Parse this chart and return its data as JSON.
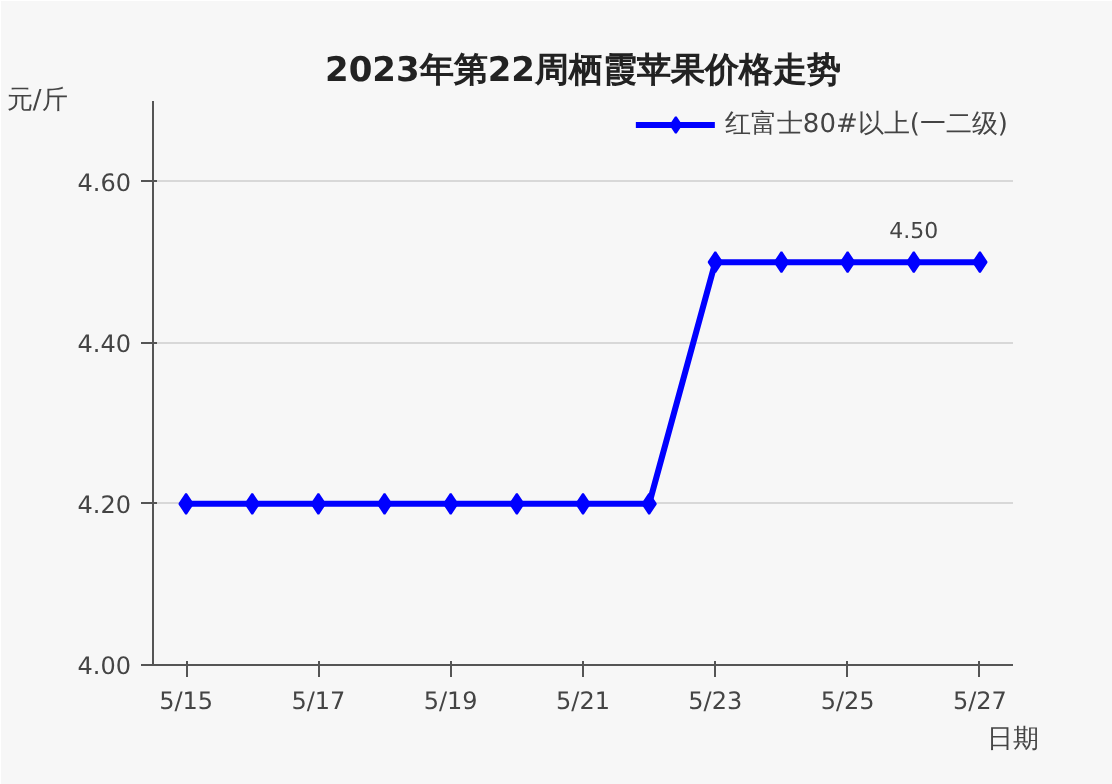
{
  "chart_data": {
    "type": "line",
    "title": "2023年第22周栖霞苹果价格走势",
    "xlabel": "日期",
    "ylabel": "元/斤",
    "categories": [
      "5/15",
      null,
      "5/17",
      null,
      "5/19",
      null,
      "5/21",
      null,
      "5/23",
      null,
      "5/25",
      null,
      "5/27"
    ],
    "series": [
      {
        "name": "红富士80#以上(一二级)",
        "color": "#0000ff",
        "values": [
          4.2,
          4.2,
          4.2,
          4.2,
          4.2,
          4.2,
          4.2,
          4.2,
          4.5,
          4.5,
          4.5,
          4.5,
          4.5
        ],
        "value_labels": [
          null,
          null,
          null,
          null,
          null,
          null,
          null,
          null,
          null,
          null,
          null,
          "4.50",
          null
        ]
      }
    ],
    "ylim": [
      4.0,
      4.7
    ],
    "yticks": [
      {
        "value": 4.0,
        "label": "4.00"
      },
      {
        "value": 4.2,
        "label": "4.20"
      },
      {
        "value": 4.4,
        "label": "4.40"
      },
      {
        "value": 4.6,
        "label": "4.60"
      }
    ],
    "grid": "y",
    "legend": "top right",
    "marker": "diamond",
    "line_style": "solid"
  }
}
